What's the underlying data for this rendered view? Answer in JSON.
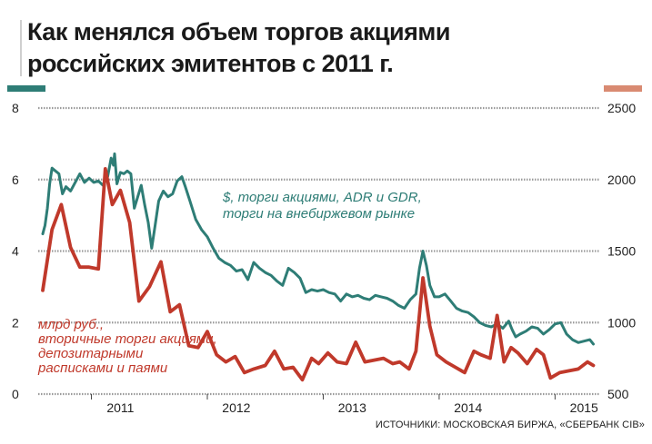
{
  "header": {
    "title_line1": "Как менялся объем торгов акциями",
    "title_line2": "российских эмитентов с 2011 г."
  },
  "footer": {
    "source": "ИСТОЧНИКИ: МОСКОВСКАЯ БИРЖА, «СБЕРБАНК CIB»"
  },
  "colors": {
    "teal": "#2e7d76",
    "red": "#c0392b",
    "grid": "#9a9a9a",
    "salmon": "#d98a72"
  },
  "chart_data": {
    "type": "line",
    "x_tick_labels": [
      "2011",
      "2012",
      "2013",
      "2014",
      "2015"
    ],
    "x_ticks": [
      2011.0,
      2012.0,
      2013.0,
      2014.0,
      2015.0
    ],
    "xlim": [
      2010.58,
      2015.35
    ],
    "y_left": {
      "ticks": [
        "0",
        "2",
        "4",
        "6",
        "8"
      ],
      "lim": [
        0,
        8
      ]
    },
    "y_right": {
      "ticks": [
        "500",
        "1000",
        "1500",
        "2000",
        "2500"
      ],
      "lim": [
        500,
        2500
      ]
    },
    "grid": true,
    "series": [
      {
        "name": "$, торги акциями, ADR и GDR,\nторги на внебиржевом рынке",
        "axis": "right",
        "color": "#2e7d76",
        "points": [
          [
            2010.58,
            1620
          ],
          [
            2010.6,
            1680
          ],
          [
            2010.62,
            1800
          ],
          [
            2010.64,
            1970
          ],
          [
            2010.66,
            2080
          ],
          [
            2010.69,
            2060
          ],
          [
            2010.72,
            2040
          ],
          [
            2010.75,
            1900
          ],
          [
            2010.78,
            1950
          ],
          [
            2010.82,
            1920
          ],
          [
            2010.86,
            1980
          ],
          [
            2010.9,
            2040
          ],
          [
            2010.94,
            1980
          ],
          [
            2010.98,
            2010
          ],
          [
            2011.02,
            1980
          ],
          [
            2011.06,
            1990
          ],
          [
            2011.1,
            1960
          ],
          [
            2011.14,
            2020
          ],
          [
            2011.17,
            2150
          ],
          [
            2011.19,
            2100
          ],
          [
            2011.2,
            2180
          ],
          [
            2011.22,
            1970
          ],
          [
            2011.25,
            2050
          ],
          [
            2011.28,
            2040
          ],
          [
            2011.31,
            2060
          ],
          [
            2011.34,
            2040
          ],
          [
            2011.37,
            1800
          ],
          [
            2011.4,
            1880
          ],
          [
            2011.43,
            1960
          ],
          [
            2011.46,
            1820
          ],
          [
            2011.49,
            1700
          ],
          [
            2011.52,
            1520
          ],
          [
            2011.55,
            1680
          ],
          [
            2011.58,
            1850
          ],
          [
            2011.62,
            1920
          ],
          [
            2011.66,
            1880
          ],
          [
            2011.7,
            1900
          ],
          [
            2011.74,
            1990
          ],
          [
            2011.78,
            2020
          ],
          [
            2011.81,
            1950
          ],
          [
            2011.85,
            1850
          ],
          [
            2011.9,
            1720
          ],
          [
            2011.95,
            1650
          ],
          [
            2012.0,
            1600
          ],
          [
            2012.05,
            1520
          ],
          [
            2012.1,
            1450
          ],
          [
            2012.15,
            1420
          ],
          [
            2012.2,
            1400
          ],
          [
            2012.25,
            1360
          ],
          [
            2012.3,
            1370
          ],
          [
            2012.35,
            1300
          ],
          [
            2012.4,
            1420
          ],
          [
            2012.45,
            1380
          ],
          [
            2012.5,
            1350
          ],
          [
            2012.55,
            1330
          ],
          [
            2012.6,
            1290
          ],
          [
            2012.65,
            1260
          ],
          [
            2012.7,
            1380
          ],
          [
            2012.75,
            1350
          ],
          [
            2012.8,
            1310
          ],
          [
            2012.85,
            1210
          ],
          [
            2012.9,
            1230
          ],
          [
            2012.95,
            1220
          ],
          [
            2013.0,
            1230
          ],
          [
            2013.05,
            1210
          ],
          [
            2013.1,
            1200
          ],
          [
            2013.15,
            1150
          ],
          [
            2013.2,
            1200
          ],
          [
            2013.25,
            1180
          ],
          [
            2013.3,
            1190
          ],
          [
            2013.35,
            1170
          ],
          [
            2013.4,
            1160
          ],
          [
            2013.45,
            1190
          ],
          [
            2013.5,
            1180
          ],
          [
            2013.55,
            1170
          ],
          [
            2013.6,
            1150
          ],
          [
            2013.65,
            1120
          ],
          [
            2013.7,
            1100
          ],
          [
            2013.75,
            1160
          ],
          [
            2013.8,
            1200
          ],
          [
            2013.83,
            1380
          ],
          [
            2013.86,
            1500
          ],
          [
            2013.89,
            1400
          ],
          [
            2013.92,
            1260
          ],
          [
            2013.96,
            1180
          ],
          [
            2014.0,
            1180
          ],
          [
            2014.05,
            1200
          ],
          [
            2014.1,
            1150
          ],
          [
            2014.15,
            1100
          ],
          [
            2014.2,
            1080
          ],
          [
            2014.25,
            1070
          ],
          [
            2014.3,
            1040
          ],
          [
            2014.35,
            1000
          ],
          [
            2014.4,
            980
          ],
          [
            2014.45,
            970
          ],
          [
            2014.5,
            990
          ],
          [
            2014.55,
            960
          ],
          [
            2014.6,
            1010
          ],
          [
            2014.63,
            950
          ],
          [
            2014.66,
            900
          ],
          [
            2014.7,
            920
          ],
          [
            2014.75,
            940
          ],
          [
            2014.8,
            970
          ],
          [
            2014.85,
            960
          ],
          [
            2014.9,
            920
          ],
          [
            2014.95,
            950
          ],
          [
            2015.0,
            990
          ],
          [
            2015.05,
            1000
          ],
          [
            2015.1,
            920
          ],
          [
            2015.15,
            880
          ],
          [
            2015.2,
            860
          ],
          [
            2015.25,
            870
          ],
          [
            2015.3,
            880
          ],
          [
            2015.33,
            850
          ]
        ]
      },
      {
        "name": "млрд руб.,\nвторичные торги акциями,\nдепозитарными\nрасписками и паями",
        "axis": "left",
        "color": "#c0392b",
        "points": [
          [
            2010.58,
            2.9
          ],
          [
            2010.66,
            4.6
          ],
          [
            2010.74,
            5.3
          ],
          [
            2010.82,
            4.1
          ],
          [
            2010.9,
            3.55
          ],
          [
            2010.98,
            3.55
          ],
          [
            2011.06,
            3.5
          ],
          [
            2011.12,
            6.3
          ],
          [
            2011.18,
            5.3
          ],
          [
            2011.25,
            5.7
          ],
          [
            2011.33,
            4.8
          ],
          [
            2011.41,
            2.6
          ],
          [
            2011.5,
            3.0
          ],
          [
            2011.6,
            3.7
          ],
          [
            2011.68,
            2.3
          ],
          [
            2011.76,
            2.5
          ],
          [
            2011.84,
            1.35
          ],
          [
            2011.92,
            1.3
          ],
          [
            2012.0,
            1.75
          ],
          [
            2012.08,
            1.1
          ],
          [
            2012.16,
            0.9
          ],
          [
            2012.24,
            1.05
          ],
          [
            2012.32,
            0.6
          ],
          [
            2012.4,
            0.7
          ],
          [
            2012.5,
            0.8
          ],
          [
            2012.58,
            1.2
          ],
          [
            2012.66,
            0.7
          ],
          [
            2012.74,
            0.75
          ],
          [
            2012.82,
            0.4
          ],
          [
            2012.9,
            1.0
          ],
          [
            2012.96,
            0.85
          ],
          [
            2013.04,
            1.15
          ],
          [
            2013.12,
            0.9
          ],
          [
            2013.2,
            0.85
          ],
          [
            2013.28,
            1.45
          ],
          [
            2013.36,
            0.9
          ],
          [
            2013.44,
            0.95
          ],
          [
            2013.52,
            1.0
          ],
          [
            2013.6,
            0.85
          ],
          [
            2013.66,
            0.9
          ],
          [
            2013.74,
            0.7
          ],
          [
            2013.8,
            1.2
          ],
          [
            2013.86,
            3.25
          ],
          [
            2013.92,
            1.9
          ],
          [
            2013.98,
            1.1
          ],
          [
            2014.06,
            0.9
          ],
          [
            2014.14,
            0.75
          ],
          [
            2014.22,
            0.6
          ],
          [
            2014.3,
            1.2
          ],
          [
            2014.36,
            1.1
          ],
          [
            2014.44,
            1.0
          ],
          [
            2014.5,
            2.2
          ],
          [
            2014.56,
            0.9
          ],
          [
            2014.62,
            1.3
          ],
          [
            2014.68,
            1.15
          ],
          [
            2014.76,
            0.85
          ],
          [
            2014.84,
            1.25
          ],
          [
            2014.9,
            1.1
          ],
          [
            2014.96,
            0.45
          ],
          [
            2015.04,
            0.6
          ],
          [
            2015.12,
            0.65
          ],
          [
            2015.2,
            0.7
          ],
          [
            2015.28,
            0.9
          ],
          [
            2015.33,
            0.8
          ]
        ]
      }
    ]
  }
}
